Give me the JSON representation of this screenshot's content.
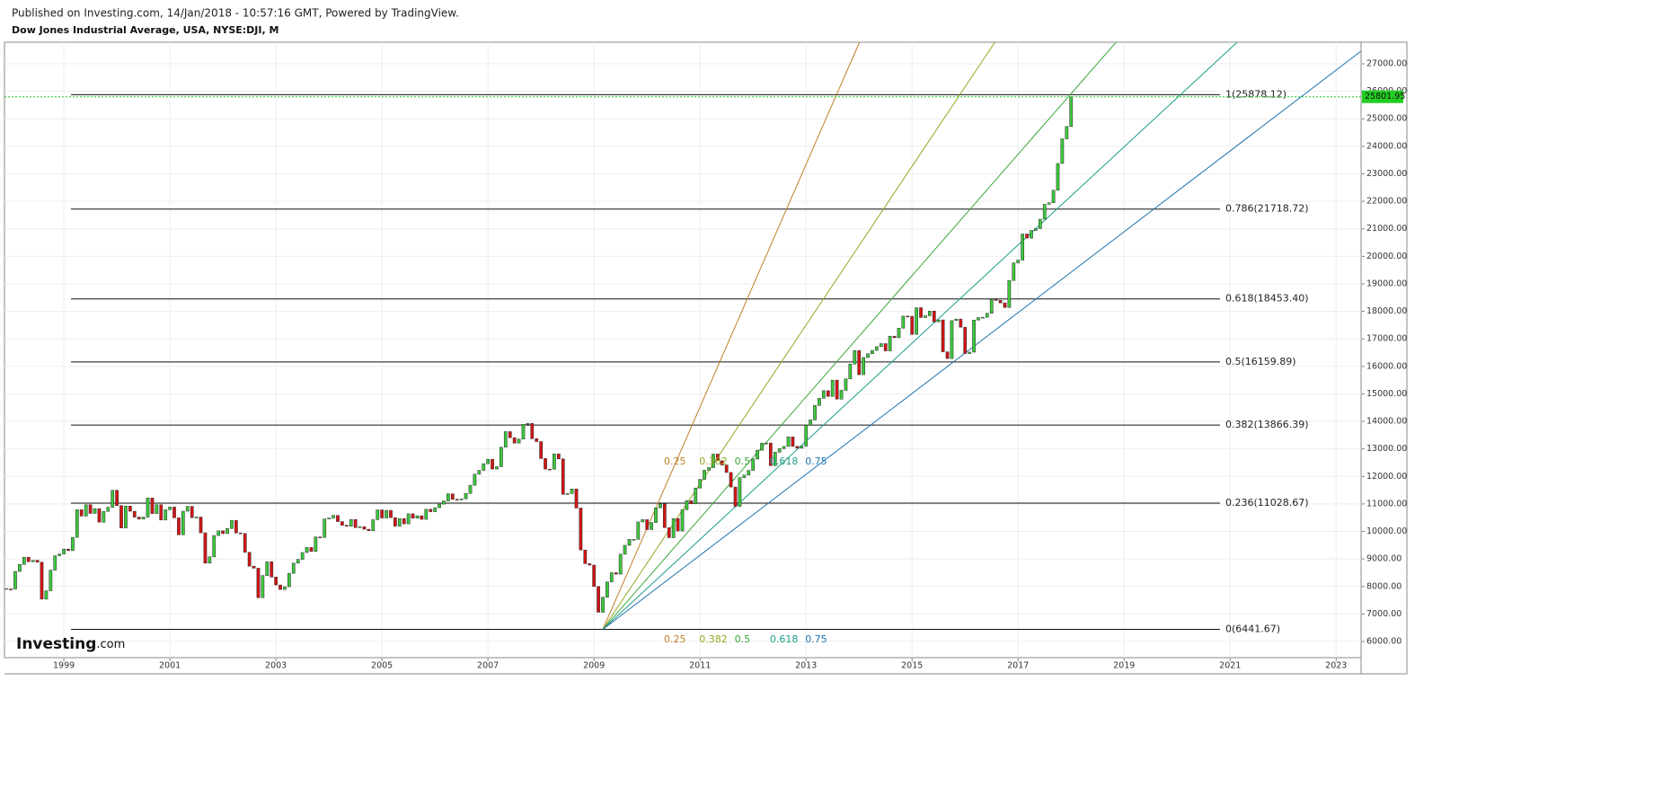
{
  "chart_data": {
    "type": "candlestick",
    "published": "Published on Investing.com, 14/Jan/2018 - 10:57:16 GMT, Powered by TradingView.",
    "title": "Dow Jones Industrial Average, USA, NYSE:DJI, M",
    "logo": "Investing",
    "logo_suffix": ".com",
    "up_color": "#3cc83c",
    "down_color": "#d41414",
    "xlim": [
      1997.88,
      2023.47
    ],
    "ylim": [
      5412,
      27784
    ],
    "xticks": [
      1999,
      2001,
      2003,
      2005,
      2007,
      2009,
      2011,
      2013,
      2015,
      2017,
      2019,
      2021,
      2023
    ],
    "yticks": [
      {
        "value": 6000,
        "label": "6000.00"
      },
      {
        "value": 7000,
        "label": "7000.00"
      },
      {
        "value": 8000,
        "label": "8000.00"
      },
      {
        "value": 9000,
        "label": "9000.00"
      },
      {
        "value": 10000,
        "label": "10000.00"
      },
      {
        "value": 11000,
        "label": "11000.00"
      },
      {
        "value": 12000,
        "label": "12000.00"
      },
      {
        "value": 13000,
        "label": "13000.00"
      },
      {
        "value": 14000,
        "label": "14000.00"
      },
      {
        "value": 15000,
        "label": "15000.00"
      },
      {
        "value": 16000,
        "label": "16000.00"
      },
      {
        "value": 17000,
        "label": "17000.00"
      },
      {
        "value": 18000,
        "label": "18000.00"
      },
      {
        "value": 19000,
        "label": "19000.00"
      },
      {
        "value": 20000,
        "label": "20000.00"
      },
      {
        "value": 21000,
        "label": "21000.00"
      },
      {
        "value": 22000,
        "label": "22000.00"
      },
      {
        "value": 23000,
        "label": "23000.00"
      },
      {
        "value": 24000,
        "label": "24000.00"
      },
      {
        "value": 25000,
        "label": "25000.00"
      },
      {
        "value": 26000,
        "label": "26000.00"
      },
      {
        "value": 27000,
        "label": "27000.00"
      }
    ],
    "grid": true,
    "last_price": 25801.95,
    "last_price_color": "#22cc22",
    "x": [
      1997.917,
      1998.0,
      1998.083,
      1998.167,
      1998.25,
      1998.333,
      1998.417,
      1998.5,
      1998.583,
      1998.667,
      1998.75,
      1998.833,
      1998.917,
      1999.0,
      1999.083,
      1999.167,
      1999.25,
      1999.333,
      1999.417,
      1999.5,
      1999.583,
      1999.667,
      1999.75,
      1999.833,
      1999.917,
      2000.0,
      2000.083,
      2000.167,
      2000.25,
      2000.333,
      2000.417,
      2000.5,
      2000.583,
      2000.667,
      2000.75,
      2000.833,
      2000.917,
      2001.0,
      2001.083,
      2001.167,
      2001.25,
      2001.333,
      2001.417,
      2001.5,
      2001.583,
      2001.667,
      2001.75,
      2001.833,
      2001.917,
      2002.0,
      2002.083,
      2002.167,
      2002.25,
      2002.333,
      2002.417,
      2002.5,
      2002.583,
      2002.667,
      2002.75,
      2002.833,
      2002.917,
      2003.0,
      2003.083,
      2003.167,
      2003.25,
      2003.333,
      2003.417,
      2003.5,
      2003.583,
      2003.667,
      2003.75,
      2003.833,
      2003.917,
      2004.0,
      2004.083,
      2004.167,
      2004.25,
      2004.333,
      2004.417,
      2004.5,
      2004.583,
      2004.667,
      2004.75,
      2004.833,
      2004.917,
      2005.0,
      2005.083,
      2005.167,
      2005.25,
      2005.333,
      2005.417,
      2005.5,
      2005.583,
      2005.667,
      2005.75,
      2005.833,
      2005.917,
      2006.0,
      2006.083,
      2006.167,
      2006.25,
      2006.333,
      2006.417,
      2006.5,
      2006.583,
      2006.667,
      2006.75,
      2006.833,
      2006.917,
      2007.0,
      2007.083,
      2007.167,
      2007.25,
      2007.333,
      2007.417,
      2007.5,
      2007.583,
      2007.667,
      2007.75,
      2007.833,
      2007.917,
      2008.0,
      2008.083,
      2008.167,
      2008.25,
      2008.333,
      2008.417,
      2008.5,
      2008.583,
      2008.667,
      2008.75,
      2008.833,
      2008.917,
      2009.0,
      2009.083,
      2009.167,
      2009.25,
      2009.333,
      2009.417,
      2009.5,
      2009.583,
      2009.667,
      2009.75,
      2009.833,
      2009.917,
      2010.0,
      2010.083,
      2010.167,
      2010.25,
      2010.333,
      2010.417,
      2010.5,
      2010.583,
      2010.667,
      2010.75,
      2010.833,
      2010.917,
      2011.0,
      2011.083,
      2011.167,
      2011.25,
      2011.333,
      2011.417,
      2011.5,
      2011.583,
      2011.667,
      2011.75,
      2011.833,
      2011.917,
      2012.0,
      2012.083,
      2012.167,
      2012.25,
      2012.333,
      2012.417,
      2012.5,
      2012.583,
      2012.667,
      2012.75,
      2012.833,
      2012.917,
      2013.0,
      2013.083,
      2013.167,
      2013.25,
      2013.333,
      2013.417,
      2013.5,
      2013.583,
      2013.667,
      2013.75,
      2013.833,
      2013.917,
      2014.0,
      2014.083,
      2014.167,
      2014.25,
      2014.333,
      2014.417,
      2014.5,
      2014.583,
      2014.667,
      2014.75,
      2014.833,
      2014.917,
      2015.0,
      2015.083,
      2015.167,
      2015.25,
      2015.333,
      2015.417,
      2015.5,
      2015.583,
      2015.667,
      2015.75,
      2015.833,
      2015.917,
      2016.0,
      2016.083,
      2016.167,
      2016.25,
      2016.333,
      2016.417,
      2016.5,
      2016.583,
      2016.667,
      2016.75,
      2016.833,
      2016.917,
      2017.0,
      2017.083,
      2017.167,
      2017.25,
      2017.333,
      2017.417,
      2017.5,
      2017.583,
      2017.667,
      2017.75,
      2017.833,
      2017.917,
      2018.0
    ],
    "close": [
      7908,
      7907,
      8546,
      8800,
      9063,
      8900,
      8952,
      8883,
      7539,
      7843,
      8592,
      9117,
      9181,
      9359,
      9307,
      9786,
      10789,
      10560,
      10971,
      10655,
      10829,
      10337,
      10729,
      10878,
      11497,
      10941,
      10128,
      10922,
      10734,
      10522,
      10448,
      10522,
      11215,
      10651,
      10971,
      10415,
      10787,
      10887,
      10495,
      9879,
      10735,
      10912,
      10502,
      10523,
      9950,
      8848,
      9075,
      9852,
      10022,
      9920,
      10106,
      10404,
      9946,
      9925,
      9243,
      8737,
      8664,
      7592,
      8397,
      8896,
      8342,
      8054,
      7891,
      7992,
      8480,
      8850,
      8985,
      9234,
      9416,
      9275,
      9801,
      9782,
      10454,
      10488,
      10584,
      10358,
      10226,
      10188,
      10435,
      10140,
      10174,
      10080,
      10027,
      10428,
      10783,
      10490,
      10766,
      10504,
      10193,
      10467,
      10275,
      10641,
      10482,
      10569,
      10440,
      10806,
      10718,
      10865,
      10993,
      11109,
      11367,
      11168,
      11150,
      11186,
      11381,
      11679,
      12081,
      12221,
      12463,
      12622,
      12269,
      12354,
      13063,
      13628,
      13409,
      13212,
      13358,
      13896,
      13930,
      13372,
      13265,
      12650,
      12266,
      12263,
      12820,
      12638,
      11350,
      11378,
      11544,
      10851,
      9325,
      8829,
      8776,
      8001,
      7063,
      7609,
      8168,
      8500,
      8447,
      9172,
      9496,
      9712,
      9713,
      10345,
      10428,
      10067,
      10325,
      10857,
      11009,
      10137,
      9774,
      10466,
      10015,
      10788,
      11118,
      11006,
      11578,
      11892,
      12226,
      12320,
      12811,
      12570,
      12414,
      12143,
      11614,
      10913,
      11955,
      12046,
      12218,
      12633,
      12952,
      13212,
      13214,
      12393,
      12880,
      13009,
      13091,
      13437,
      13096,
      13026,
      13104,
      13861,
      14054,
      14579,
      14840,
      15116,
      14910,
      15500,
      14810,
      15130,
      15546,
      16086,
      16577,
      15699,
      16322,
      16458,
      16581,
      16717,
      16827,
      16563,
      17098,
      17043,
      17391,
      17828,
      17823,
      17165,
      18133,
      17776,
      17841,
      18011,
      17620,
      17690,
      16528,
      16285,
      17664,
      17720,
      17425,
      16466,
      16517,
      17685,
      17774,
      17787,
      17930,
      18432,
      18401,
      18308,
      18142,
      19124,
      19763,
      19864,
      20812,
      20663,
      20941,
      21009,
      21350,
      21891,
      21948,
      22405,
      23377,
      24272,
      24719,
      25801.95
    ],
    "fib_levels": [
      {
        "value": 6441.67,
        "label": "0(6441.67)"
      },
      {
        "value": 11028.67,
        "label": "0.236(11028.67)"
      },
      {
        "value": 13866.39,
        "label": "0.382(13866.39)"
      },
      {
        "value": 16159.89,
        "label": "0.5(16159.89)"
      },
      {
        "value": 18453.4,
        "label": "0.618(18453.40)"
      },
      {
        "value": 21718.72,
        "label": "0.786(21718.72)"
      },
      {
        "value": 25878.12,
        "label": "1(25878.12)"
      }
    ],
    "fan": {
      "start": {
        "x": 2009.167,
        "y": 6441.67
      },
      "end": {
        "x": 2026.8,
        "y": 25878.12
      },
      "levels": [
        {
          "ratio": 0.25,
          "color": "#c0802a"
        },
        {
          "ratio": 0.382,
          "color": "#92a824"
        },
        {
          "ratio": 0.5,
          "color": "#3aa83a"
        },
        {
          "ratio": 0.618,
          "color": "#1c9e88"
        },
        {
          "ratio": 0.75,
          "color": "#1f74b0"
        }
      ]
    }
  }
}
